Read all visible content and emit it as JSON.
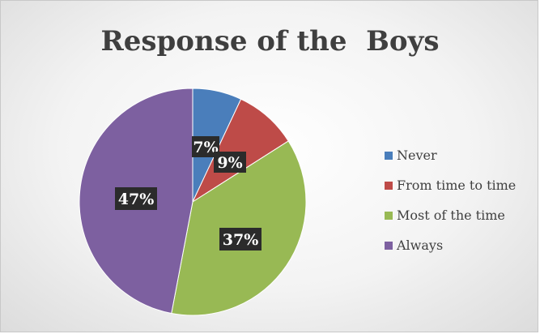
{
  "chart_data": {
    "type": "pie",
    "title": "Response of the  Boys",
    "categories": [
      "Never",
      "From time to time",
      "Most of the time",
      "Always"
    ],
    "values": [
      7,
      9,
      37,
      47
    ],
    "labels": [
      "7%",
      "9%",
      "37%",
      "47%"
    ],
    "colors": [
      "#4a7ebb",
      "#be4b48",
      "#98b954",
      "#7d60a0"
    ],
    "legend_position": "right",
    "start_angle": "top, clockwise"
  }
}
